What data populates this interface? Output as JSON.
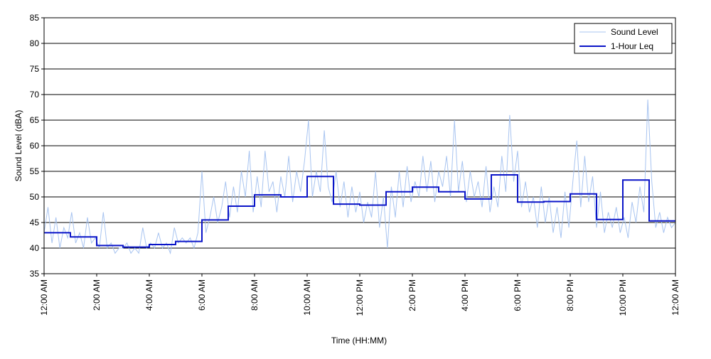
{
  "chart_data": {
    "type": "line",
    "title": "",
    "xlabel": "Time (HH:MM)",
    "ylabel": "Sound Level (dBA)",
    "ylim": [
      35,
      85
    ],
    "xlim": [
      0,
      24
    ],
    "grid": "horizontal",
    "legend_position": "top-right",
    "yticks": [
      35,
      40,
      45,
      50,
      55,
      60,
      65,
      70,
      75,
      80,
      85
    ],
    "xticks": [
      {
        "hour": 0,
        "label": "12:00 AM"
      },
      {
        "hour": 2,
        "label": "2:00 AM"
      },
      {
        "hour": 4,
        "label": "4:00 AM"
      },
      {
        "hour": 6,
        "label": "6:00 AM"
      },
      {
        "hour": 8,
        "label": "8:00 AM"
      },
      {
        "hour": 10,
        "label": "10:00 AM"
      },
      {
        "hour": 12,
        "label": "12:00 PM"
      },
      {
        "hour": 14,
        "label": "2:00 PM"
      },
      {
        "hour": 16,
        "label": "4:00 PM"
      },
      {
        "hour": 18,
        "label": "6:00 PM"
      },
      {
        "hour": 20,
        "label": "8:00 PM"
      },
      {
        "hour": 22,
        "label": "10:00 PM"
      },
      {
        "hour": 24,
        "label": "12:00 AM"
      }
    ],
    "series": [
      {
        "name": "Sound Level",
        "color": "#a8c4f0",
        "style": "thin-noisy-line",
        "x": [
          0.0,
          0.15,
          0.3,
          0.45,
          0.6,
          0.75,
          0.9,
          1.05,
          1.2,
          1.35,
          1.5,
          1.65,
          1.8,
          1.95,
          2.1,
          2.25,
          2.4,
          2.55,
          2.7,
          2.85,
          3.0,
          3.15,
          3.3,
          3.45,
          3.6,
          3.75,
          3.9,
          4.05,
          4.2,
          4.35,
          4.5,
          4.65,
          4.8,
          4.95,
          5.1,
          5.25,
          5.4,
          5.55,
          5.7,
          5.85,
          6.0,
          6.15,
          6.3,
          6.45,
          6.6,
          6.75,
          6.9,
          7.05,
          7.2,
          7.35,
          7.5,
          7.65,
          7.8,
          7.95,
          8.1,
          8.25,
          8.4,
          8.55,
          8.7,
          8.85,
          9.0,
          9.15,
          9.3,
          9.45,
          9.6,
          9.75,
          9.9,
          10.05,
          10.2,
          10.35,
          10.5,
          10.65,
          10.8,
          10.95,
          11.1,
          11.25,
          11.4,
          11.55,
          11.7,
          11.85,
          12.0,
          12.15,
          12.3,
          12.45,
          12.6,
          12.75,
          12.9,
          13.05,
          13.2,
          13.35,
          13.5,
          13.65,
          13.8,
          13.95,
          14.1,
          14.25,
          14.4,
          14.55,
          14.7,
          14.85,
          15.0,
          15.15,
          15.3,
          15.45,
          15.6,
          15.75,
          15.9,
          16.05,
          16.2,
          16.35,
          16.5,
          16.65,
          16.8,
          16.95,
          17.1,
          17.25,
          17.4,
          17.55,
          17.7,
          17.85,
          18.0,
          18.15,
          18.3,
          18.45,
          18.6,
          18.75,
          18.9,
          19.05,
          19.2,
          19.35,
          19.5,
          19.65,
          19.8,
          19.95,
          20.1,
          20.25,
          20.4,
          20.55,
          20.7,
          20.85,
          21.0,
          21.15,
          21.3,
          21.45,
          21.6,
          21.75,
          21.9,
          22.05,
          22.2,
          22.35,
          22.5,
          22.65,
          22.8,
          22.95,
          23.1,
          23.25,
          23.4,
          23.55,
          23.7,
          23.85,
          24.0
        ],
        "values": [
          43,
          48,
          41,
          46,
          40,
          44,
          42,
          47,
          41,
          43,
          40,
          46,
          41,
          42,
          40,
          47,
          40,
          41,
          39,
          40,
          40,
          41,
          39,
          40,
          39,
          44,
          40,
          41,
          40,
          43,
          40,
          41,
          39,
          44,
          41,
          42,
          41,
          42,
          40,
          43,
          55,
          43,
          46,
          50,
          45,
          48,
          53,
          46,
          52,
          47,
          55,
          50,
          59,
          47,
          54,
          48,
          59,
          51,
          53,
          47,
          54,
          50,
          58,
          49,
          55,
          51,
          57,
          65,
          50,
          55,
          51,
          63,
          52,
          49,
          55,
          48,
          53,
          46,
          52,
          47,
          51,
          45,
          49,
          46,
          55,
          44,
          50,
          40,
          52,
          46,
          55,
          48,
          56,
          49,
          53,
          50,
          58,
          51,
          57,
          49,
          55,
          52,
          58,
          50,
          65,
          51,
          57,
          49,
          55,
          50,
          53,
          48,
          56,
          47,
          52,
          48,
          58,
          51,
          66,
          53,
          59,
          48,
          53,
          47,
          50,
          44,
          52,
          45,
          50,
          43,
          48,
          42,
          51,
          44,
          53,
          61,
          48,
          58,
          49,
          54,
          44,
          51,
          43,
          47,
          44,
          48,
          43,
          46,
          42,
          49,
          45,
          52,
          47,
          69,
          53,
          44,
          47,
          43,
          46,
          44,
          45
        ]
      },
      {
        "name": "1-Hour Leq",
        "color": "#0a14c8",
        "style": "step",
        "hour_start": [
          0,
          1,
          2,
          3,
          4,
          5,
          6,
          7,
          8,
          9,
          10,
          11,
          12,
          13,
          14,
          15,
          16,
          17,
          18,
          19,
          20,
          21,
          22,
          23
        ],
        "values": [
          43.0,
          42.2,
          40.5,
          40.2,
          40.7,
          41.3,
          45.5,
          48.2,
          50.4,
          50.0,
          54.0,
          48.6,
          48.4,
          51.0,
          51.9,
          51.0,
          49.6,
          54.3,
          49.0,
          49.1,
          50.6,
          45.6,
          53.3,
          45.3
        ]
      }
    ]
  }
}
